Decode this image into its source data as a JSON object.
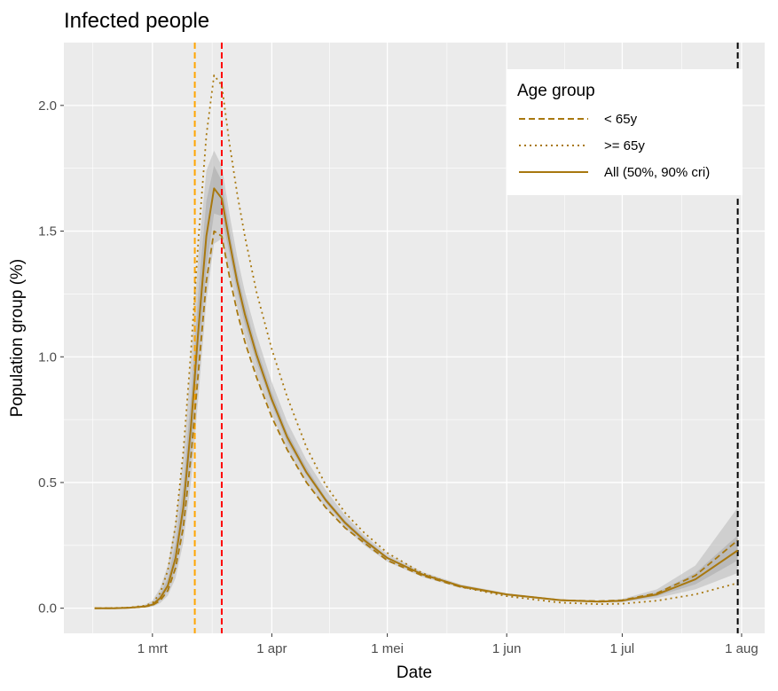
{
  "chart_data": {
    "type": "line",
    "title": "Infected people",
    "xlabel": "Date",
    "ylabel": "Population group (%)",
    "x_ticks": [
      {
        "date": "2020-03-01",
        "label": "1 mrt"
      },
      {
        "date": "2020-04-01",
        "label": "1 apr"
      },
      {
        "date": "2020-05-01",
        "label": "1 mei"
      },
      {
        "date": "2020-06-01",
        "label": "1 jun"
      },
      {
        "date": "2020-07-01",
        "label": "1 jul"
      },
      {
        "date": "2020-08-01",
        "label": "1 aug"
      }
    ],
    "y_ticks": [
      {
        "value": 0.0,
        "label": "0.0"
      },
      {
        "value": 0.5,
        "label": "0.5"
      },
      {
        "value": 1.0,
        "label": "1.0"
      },
      {
        "value": 1.5,
        "label": "1.5"
      },
      {
        "value": 2.0,
        "label": "2.0"
      }
    ],
    "xlim": [
      "2020-02-07",
      "2020-08-07"
    ],
    "ylim": [
      -0.1,
      2.25
    ],
    "grid": true,
    "legend": {
      "title": "Age group",
      "position": "top-right",
      "entries": [
        {
          "label": "< 65y",
          "linetype": "dashed"
        },
        {
          "label": ">= 65y",
          "linetype": "dotted"
        },
        {
          "label": "All (50%, 90% cri)",
          "linetype": "solid"
        }
      ]
    },
    "colors": {
      "series": "#a8780f",
      "ribbon_outer": "#bdbdbd",
      "ribbon_inner": "#a9a9a9",
      "panel": "#ebebeb",
      "grid": "#ffffff"
    },
    "vlines": [
      {
        "date": "2020-03-12",
        "color": "#ffa500",
        "linetype": "dashed"
      },
      {
        "date": "2020-03-19",
        "color": "#ff0000",
        "linetype": "dashed"
      },
      {
        "date": "2020-07-31",
        "color": "#000000",
        "linetype": "dashed"
      }
    ],
    "series": [
      {
        "name": "< 65y",
        "linetype": "dashed",
        "x": [
          "2020-02-15",
          "2020-02-20",
          "2020-02-24",
          "2020-02-28",
          "2020-03-01",
          "2020-03-03",
          "2020-03-05",
          "2020-03-07",
          "2020-03-09",
          "2020-03-11",
          "2020-03-13",
          "2020-03-15",
          "2020-03-17",
          "2020-03-19",
          "2020-03-21",
          "2020-03-23",
          "2020-03-25",
          "2020-03-28",
          "2020-04-01",
          "2020-04-05",
          "2020-04-10",
          "2020-04-15",
          "2020-04-20",
          "2020-04-25",
          "2020-05-01",
          "2020-05-10",
          "2020-05-20",
          "2020-06-01",
          "2020-06-15",
          "2020-06-25",
          "2020-07-01",
          "2020-07-10",
          "2020-07-20",
          "2020-07-31"
        ],
        "y": [
          0.0,
          0.0,
          0.002,
          0.006,
          0.012,
          0.03,
          0.07,
          0.16,
          0.32,
          0.6,
          0.95,
          1.3,
          1.5,
          1.48,
          1.32,
          1.18,
          1.06,
          0.92,
          0.76,
          0.63,
          0.5,
          0.4,
          0.32,
          0.26,
          0.19,
          0.13,
          0.085,
          0.055,
          0.032,
          0.028,
          0.032,
          0.06,
          0.13,
          0.27
        ]
      },
      {
        "name": ">= 65y",
        "linetype": "dotted",
        "x": [
          "2020-02-15",
          "2020-02-20",
          "2020-02-24",
          "2020-02-28",
          "2020-03-01",
          "2020-03-03",
          "2020-03-05",
          "2020-03-07",
          "2020-03-09",
          "2020-03-11",
          "2020-03-13",
          "2020-03-15",
          "2020-03-17",
          "2020-03-19",
          "2020-03-21",
          "2020-03-23",
          "2020-03-25",
          "2020-03-28",
          "2020-04-01",
          "2020-04-05",
          "2020-04-10",
          "2020-04-15",
          "2020-04-20",
          "2020-04-25",
          "2020-05-01",
          "2020-05-10",
          "2020-05-20",
          "2020-06-01",
          "2020-06-15",
          "2020-06-25",
          "2020-07-01",
          "2020-07-10",
          "2020-07-20",
          "2020-07-31"
        ],
        "y": [
          0.0,
          0.001,
          0.003,
          0.01,
          0.02,
          0.06,
          0.15,
          0.33,
          0.62,
          1.02,
          1.48,
          1.88,
          2.12,
          2.08,
          1.85,
          1.65,
          1.48,
          1.26,
          1.03,
          0.84,
          0.64,
          0.49,
          0.38,
          0.3,
          0.22,
          0.14,
          0.085,
          0.048,
          0.022,
          0.016,
          0.018,
          0.03,
          0.055,
          0.1
        ]
      },
      {
        "name": "All (50%, 90% cri)",
        "linetype": "solid",
        "x": [
          "2020-02-15",
          "2020-02-20",
          "2020-02-24",
          "2020-02-28",
          "2020-03-01",
          "2020-03-03",
          "2020-03-05",
          "2020-03-07",
          "2020-03-09",
          "2020-03-11",
          "2020-03-13",
          "2020-03-15",
          "2020-03-17",
          "2020-03-19",
          "2020-03-21",
          "2020-03-23",
          "2020-03-25",
          "2020-03-28",
          "2020-04-01",
          "2020-04-05",
          "2020-04-10",
          "2020-04-15",
          "2020-04-20",
          "2020-04-25",
          "2020-05-01",
          "2020-05-10",
          "2020-05-20",
          "2020-06-01",
          "2020-06-15",
          "2020-06-25",
          "2020-07-01",
          "2020-07-10",
          "2020-07-20",
          "2020-07-31"
        ],
        "y": [
          0.0,
          0.0,
          0.002,
          0.007,
          0.014,
          0.04,
          0.09,
          0.2,
          0.4,
          0.72,
          1.12,
          1.48,
          1.67,
          1.63,
          1.46,
          1.3,
          1.17,
          1.01,
          0.83,
          0.68,
          0.54,
          0.43,
          0.34,
          0.27,
          0.2,
          0.135,
          0.088,
          0.055,
          0.032,
          0.026,
          0.03,
          0.055,
          0.115,
          0.23
        ],
        "ci90_low": [
          0.0,
          0.0,
          0.001,
          0.003,
          0.006,
          0.02,
          0.05,
          0.12,
          0.26,
          0.5,
          0.85,
          1.22,
          1.45,
          1.47,
          1.34,
          1.2,
          1.08,
          0.93,
          0.77,
          0.63,
          0.5,
          0.4,
          0.32,
          0.25,
          0.185,
          0.125,
          0.08,
          0.05,
          0.028,
          0.022,
          0.024,
          0.04,
          0.075,
          0.14
        ],
        "ci90_high": [
          0.0,
          0.001,
          0.004,
          0.014,
          0.03,
          0.08,
          0.17,
          0.34,
          0.6,
          0.98,
          1.42,
          1.74,
          1.82,
          1.76,
          1.57,
          1.4,
          1.26,
          1.09,
          0.9,
          0.74,
          0.59,
          0.47,
          0.37,
          0.29,
          0.215,
          0.145,
          0.095,
          0.06,
          0.036,
          0.03,
          0.037,
          0.075,
          0.17,
          0.4
        ],
        "ci50_low": [
          0.0,
          0.0,
          0.0015,
          0.005,
          0.01,
          0.03,
          0.07,
          0.16,
          0.33,
          0.61,
          0.98,
          1.35,
          1.57,
          1.56,
          1.41,
          1.26,
          1.13,
          0.98,
          0.81,
          0.66,
          0.53,
          0.42,
          0.33,
          0.26,
          0.195,
          0.13,
          0.085,
          0.053,
          0.03,
          0.024,
          0.027,
          0.048,
          0.095,
          0.19
        ],
        "ci50_high": [
          0.0,
          0.0005,
          0.003,
          0.01,
          0.02,
          0.055,
          0.12,
          0.26,
          0.49,
          0.84,
          1.27,
          1.62,
          1.76,
          1.7,
          1.51,
          1.34,
          1.21,
          1.04,
          0.86,
          0.7,
          0.56,
          0.44,
          0.35,
          0.28,
          0.205,
          0.14,
          0.091,
          0.057,
          0.034,
          0.028,
          0.033,
          0.063,
          0.14,
          0.29
        ]
      }
    ]
  }
}
